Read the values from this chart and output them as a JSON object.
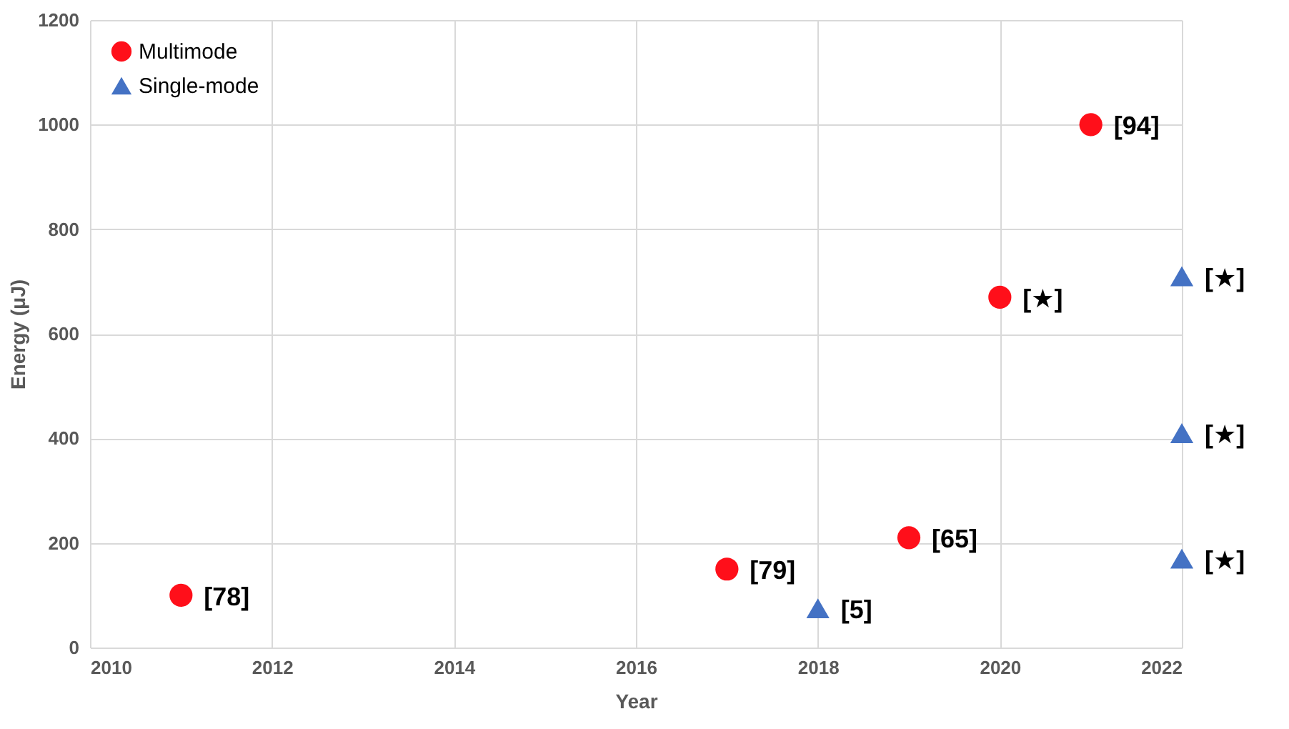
{
  "chart_data": {
    "type": "scatter",
    "xlabel": "Year",
    "ylabel": "Energy (μJ)",
    "xlim": [
      2010,
      2022
    ],
    "xticks": [
      2010,
      2012,
      2014,
      2016,
      2018,
      2020,
      2022
    ],
    "ylim": [
      0,
      1200
    ],
    "yticks": [
      0,
      200,
      400,
      600,
      800,
      1000,
      1200
    ],
    "grid": true,
    "legend": "top left",
    "series": [
      {
        "name": "Multimode",
        "color": "#ff0f1a",
        "marker": "circle",
        "x": [
          2011,
          2017,
          2019,
          2020,
          2021
        ],
        "values": [
          100,
          150,
          210,
          670,
          1000
        ]
      },
      {
        "name": "Single-mode",
        "color": "#4472c4",
        "marker": "triangle",
        "x": [
          2018,
          2022,
          2022,
          2022
        ],
        "values": [
          75,
          170,
          410,
          710
        ]
      }
    ],
    "annotations": [
      {
        "text": "[78]",
        "x": 2011,
        "y": 100
      },
      {
        "text": "[79]",
        "x": 2017,
        "y": 150
      },
      {
        "text": "[65]",
        "x": 2019,
        "y": 210
      },
      {
        "text": "[★]",
        "x": 2020,
        "y": 670
      },
      {
        "text": "[94]",
        "x": 2021,
        "y": 1000
      },
      {
        "text": "[5]",
        "x": 2018,
        "y": 75
      },
      {
        "text": "[★]",
        "x": 2022,
        "y": 170
      },
      {
        "text": "[★]",
        "x": 2022,
        "y": 410
      },
      {
        "text": "[★]",
        "x": 2022,
        "y": 710
      }
    ]
  }
}
